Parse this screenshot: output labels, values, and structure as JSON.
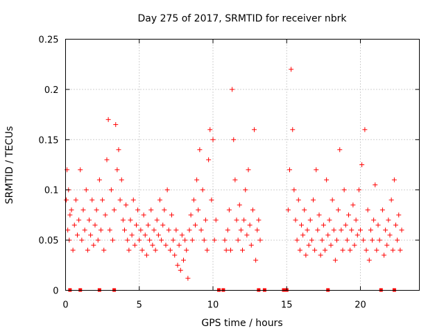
{
  "chart_data": {
    "type": "scatter",
    "title": "Day 275 of 2017, SRMTID for receiver nbrk",
    "xlabel": "GPS time / hours",
    "ylabel": "SRMTID / TECUs",
    "xlim": [
      0,
      24
    ],
    "ylim": [
      0,
      0.25
    ],
    "xticks": [
      0,
      5,
      10,
      15,
      20
    ],
    "xtick_labels": [
      "0",
      "5",
      "10",
      "15",
      "20"
    ],
    "yticks": [
      0,
      0.05,
      0.1,
      0.15,
      0.2,
      0.25
    ],
    "ytick_labels": [
      "0",
      "0.05",
      "0.1",
      "0.15",
      "0.2",
      "0.25"
    ],
    "grid": true,
    "marker": "+",
    "color": "#ff0000",
    "zero_markers_x": [
      0.3,
      1.0,
      2.3,
      3.3,
      10.4,
      10.7,
      13.1,
      13.5,
      14.8,
      15.0,
      17.8,
      21.4,
      22.3
    ],
    "series": [
      {
        "name": "SRMTID",
        "points": [
          [
            0.05,
            0.09
          ],
          [
            0.1,
            0.12
          ],
          [
            0.15,
            0.06
          ],
          [
            0.2,
            0.1
          ],
          [
            0.25,
            0.05
          ],
          [
            0.3,
            0.075
          ],
          [
            0.4,
            0.08
          ],
          [
            0.5,
            0.04
          ],
          [
            0.6,
            0.065
          ],
          [
            0.7,
            0.09
          ],
          [
            0.8,
            0.055
          ],
          [
            0.9,
            0.07
          ],
          [
            1.0,
            0.12
          ],
          [
            1.1,
            0.05
          ],
          [
            1.2,
            0.08
          ],
          [
            1.3,
            0.06
          ],
          [
            1.4,
            0.1
          ],
          [
            1.5,
            0.04
          ],
          [
            1.6,
            0.07
          ],
          [
            1.7,
            0.055
          ],
          [
            1.8,
            0.09
          ],
          [
            1.9,
            0.045
          ],
          [
            2.0,
            0.065
          ],
          [
            2.1,
            0.08
          ],
          [
            2.2,
            0.05
          ],
          [
            2.3,
            0.11
          ],
          [
            2.4,
            0.06
          ],
          [
            2.5,
            0.09
          ],
          [
            2.6,
            0.04
          ],
          [
            2.7,
            0.075
          ],
          [
            2.8,
            0.13
          ],
          [
            2.9,
            0.17
          ],
          [
            3.0,
            0.06
          ],
          [
            3.1,
            0.1
          ],
          [
            3.2,
            0.05
          ],
          [
            3.3,
            0.08
          ],
          [
            3.4,
            0.165
          ],
          [
            3.5,
            0.12
          ],
          [
            3.6,
            0.14
          ],
          [
            3.7,
            0.09
          ],
          [
            3.8,
            0.11
          ],
          [
            3.9,
            0.07
          ],
          [
            4.0,
            0.06
          ],
          [
            4.1,
            0.085
          ],
          [
            4.2,
            0.05
          ],
          [
            4.3,
            0.04
          ],
          [
            4.4,
            0.07
          ],
          [
            4.5,
            0.055
          ],
          [
            4.6,
            0.09
          ],
          [
            4.7,
            0.045
          ],
          [
            4.8,
            0.065
          ],
          [
            4.9,
            0.08
          ],
          [
            5.0,
            0.05
          ],
          [
            5.1,
            0.06
          ],
          [
            5.2,
            0.04
          ],
          [
            5.3,
            0.075
          ],
          [
            5.4,
            0.055
          ],
          [
            5.5,
            0.035
          ],
          [
            5.6,
            0.065
          ],
          [
            5.7,
            0.05
          ],
          [
            5.8,
            0.08
          ],
          [
            5.9,
            0.045
          ],
          [
            6.0,
            0.06
          ],
          [
            6.1,
            0.04
          ],
          [
            6.2,
            0.07
          ],
          [
            6.3,
            0.055
          ],
          [
            6.4,
            0.09
          ],
          [
            6.5,
            0.05
          ],
          [
            6.6,
            0.065
          ],
          [
            6.7,
            0.08
          ],
          [
            6.8,
            0.045
          ],
          [
            6.9,
            0.1
          ],
          [
            7.0,
            0.06
          ],
          [
            7.1,
            0.04
          ],
          [
            7.2,
            0.075
          ],
          [
            7.3,
            0.05
          ],
          [
            7.4,
            0.035
          ],
          [
            7.5,
            0.06
          ],
          [
            7.6,
            0.025
          ],
          [
            7.7,
            0.045
          ],
          [
            7.8,
            0.02
          ],
          [
            7.9,
            0.055
          ],
          [
            8.0,
            0.03
          ],
          [
            8.1,
            0.05
          ],
          [
            8.2,
            0.04
          ],
          [
            8.3,
            0.012
          ],
          [
            8.4,
            0.06
          ],
          [
            8.5,
            0.075
          ],
          [
            8.6,
            0.05
          ],
          [
            8.7,
            0.09
          ],
          [
            8.8,
            0.065
          ],
          [
            8.9,
            0.11
          ],
          [
            9.0,
            0.08
          ],
          [
            9.1,
            0.14
          ],
          [
            9.2,
            0.06
          ],
          [
            9.3,
            0.1
          ],
          [
            9.4,
            0.05
          ],
          [
            9.5,
            0.07
          ],
          [
            9.6,
            0.04
          ],
          [
            9.7,
            0.13
          ],
          [
            9.8,
            0.16
          ],
          [
            9.9,
            0.09
          ],
          [
            10.0,
            0.15
          ],
          [
            10.1,
            0.05
          ],
          [
            10.2,
            0.07
          ],
          [
            10.8,
            0.05
          ],
          [
            10.9,
            0.04
          ],
          [
            11.0,
            0.06
          ],
          [
            11.1,
            0.08
          ],
          [
            11.2,
            0.04
          ],
          [
            11.3,
            0.2
          ],
          [
            11.4,
            0.15
          ],
          [
            11.5,
            0.11
          ],
          [
            11.6,
            0.07
          ],
          [
            11.7,
            0.05
          ],
          [
            11.8,
            0.085
          ],
          [
            11.9,
            0.06
          ],
          [
            12.0,
            0.04
          ],
          [
            12.1,
            0.07
          ],
          [
            12.2,
            0.1
          ],
          [
            12.3,
            0.055
          ],
          [
            12.4,
            0.12
          ],
          [
            12.5,
            0.065
          ],
          [
            12.6,
            0.045
          ],
          [
            12.7,
            0.08
          ],
          [
            12.8,
            0.16
          ],
          [
            12.9,
            0.03
          ],
          [
            13.0,
            0.06
          ],
          [
            13.1,
            0.07
          ],
          [
            13.2,
            0.05
          ],
          [
            15.1,
            0.08
          ],
          [
            15.2,
            0.12
          ],
          [
            15.3,
            0.22
          ],
          [
            15.4,
            0.16
          ],
          [
            15.5,
            0.1
          ],
          [
            15.6,
            0.07
          ],
          [
            15.7,
            0.05
          ],
          [
            15.8,
            0.09
          ],
          [
            15.9,
            0.04
          ],
          [
            16.0,
            0.065
          ],
          [
            16.1,
            0.055
          ],
          [
            16.2,
            0.08
          ],
          [
            16.3,
            0.035
          ],
          [
            16.4,
            0.06
          ],
          [
            16.5,
            0.045
          ],
          [
            16.6,
            0.07
          ],
          [
            16.7,
            0.05
          ],
          [
            16.8,
            0.09
          ],
          [
            16.9,
            0.04
          ],
          [
            17.0,
            0.12
          ],
          [
            17.1,
            0.06
          ],
          [
            17.2,
            0.075
          ],
          [
            17.3,
            0.035
          ],
          [
            17.4,
            0.05
          ],
          [
            17.5,
            0.065
          ],
          [
            17.6,
            0.04
          ],
          [
            17.7,
            0.11
          ],
          [
            17.8,
            0.055
          ],
          [
            17.9,
            0.07
          ],
          [
            18.0,
            0.045
          ],
          [
            18.1,
            0.09
          ],
          [
            18.2,
            0.06
          ],
          [
            18.3,
            0.03
          ],
          [
            18.4,
            0.05
          ],
          [
            18.5,
            0.08
          ],
          [
            18.6,
            0.14
          ],
          [
            18.7,
            0.06
          ],
          [
            18.8,
            0.04
          ],
          [
            18.9,
            0.1
          ],
          [
            19.0,
            0.065
          ],
          [
            19.1,
            0.05
          ],
          [
            19.2,
            0.075
          ],
          [
            19.3,
            0.04
          ],
          [
            19.4,
            0.06
          ],
          [
            19.5,
            0.085
          ],
          [
            19.6,
            0.045
          ],
          [
            19.7,
            0.07
          ],
          [
            19.8,
            0.055
          ],
          [
            19.9,
            0.1
          ],
          [
            20.0,
            0.06
          ],
          [
            20.1,
            0.125
          ],
          [
            20.2,
            0.05
          ],
          [
            20.3,
            0.16
          ],
          [
            20.4,
            0.04
          ],
          [
            20.5,
            0.08
          ],
          [
            20.6,
            0.03
          ],
          [
            20.7,
            0.06
          ],
          [
            20.8,
            0.05
          ],
          [
            20.9,
            0.07
          ],
          [
            21.0,
            0.105
          ],
          [
            21.1,
            0.04
          ],
          [
            21.2,
            0.065
          ],
          [
            21.3,
            0.05
          ],
          [
            21.5,
            0.08
          ],
          [
            21.6,
            0.035
          ],
          [
            21.7,
            0.06
          ],
          [
            21.8,
            0.045
          ],
          [
            21.9,
            0.07
          ],
          [
            22.0,
            0.055
          ],
          [
            22.1,
            0.09
          ],
          [
            22.2,
            0.04
          ],
          [
            22.3,
            0.11
          ],
          [
            22.4,
            0.065
          ],
          [
            22.5,
            0.05
          ],
          [
            22.6,
            0.075
          ],
          [
            22.7,
            0.04
          ],
          [
            22.8,
            0.06
          ]
        ]
      }
    ]
  }
}
